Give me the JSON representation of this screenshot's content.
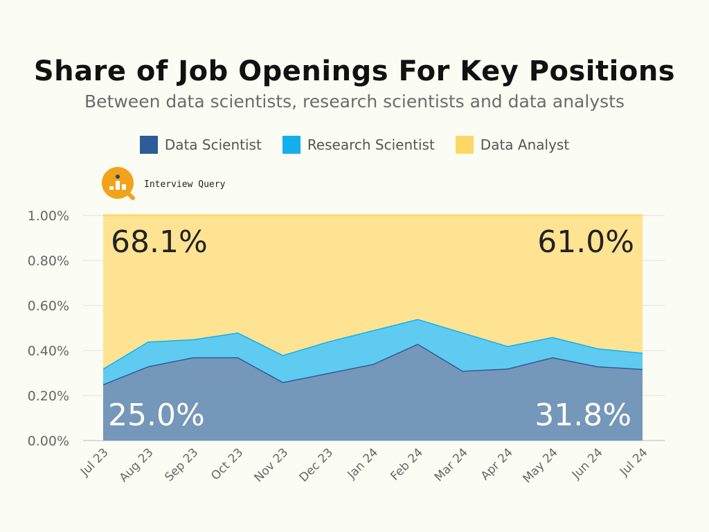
{
  "chart_data": {
    "type": "area",
    "stacked": true,
    "title": "Share of Job Openings For Key Positions",
    "subtitle": "Between data scientists, research scientists and data analysts",
    "categories": [
      "Jul 23",
      "Aug 23",
      "Sep 23",
      "Oct 23",
      "Nov 23",
      "Dec 23",
      "Jan 24",
      "Feb 24",
      "Mar 24",
      "Apr 24",
      "May 24",
      "Jun 24",
      "Jul 24"
    ],
    "series": [
      {
        "name": "Data Scientist",
        "color": "#2e5c99",
        "fill": "#7597b9",
        "values": [
          0.25,
          0.33,
          0.37,
          0.37,
          0.26,
          0.3,
          0.34,
          0.43,
          0.31,
          0.32,
          0.37,
          0.33,
          0.318
        ]
      },
      {
        "name": "Research Scientist",
        "color": "#14aeef",
        "fill": "#5fcbf1",
        "values": [
          0.07,
          0.11,
          0.08,
          0.11,
          0.12,
          0.14,
          0.15,
          0.11,
          0.17,
          0.1,
          0.09,
          0.08,
          0.072
        ]
      },
      {
        "name": "Data Analyst",
        "color": "#fed766",
        "fill": "#fde392",
        "values": [
          0.681,
          0.56,
          0.55,
          0.52,
          0.62,
          0.56,
          0.51,
          0.46,
          0.52,
          0.58,
          0.54,
          0.59,
          0.61
        ]
      }
    ],
    "yticks": [
      "0.00%",
      "0.20%",
      "0.40%",
      "0.60%",
      "0.80%",
      "1.00%"
    ],
    "ylim": [
      0,
      1
    ],
    "grid": true,
    "legend_position": "top-center",
    "annotations": {
      "analyst_start": "68.1%",
      "analyst_end": "61.0%",
      "scientist_start": "25.0%",
      "scientist_end": "31.8%"
    }
  },
  "brand": {
    "name": "Interview Query"
  }
}
